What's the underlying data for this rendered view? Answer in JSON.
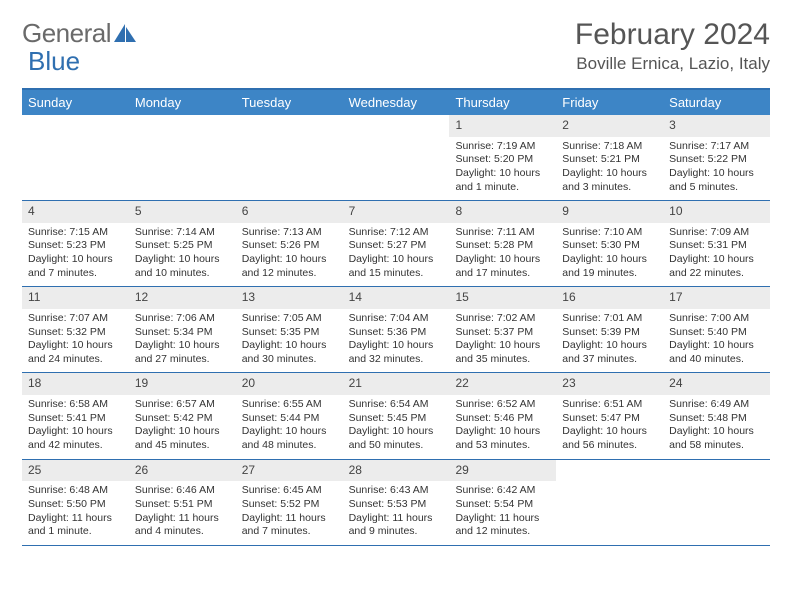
{
  "logo": {
    "text1": "General",
    "text2": "Blue"
  },
  "header": {
    "month_year": "February 2024",
    "location": "Boville Ernica, Lazio, Italy"
  },
  "colors": {
    "header_bar": "#3d85c6",
    "rule": "#2f6fb0",
    "daynum_bg": "#ececec",
    "text": "#333333",
    "logo_gray": "#6a6a6a",
    "logo_blue": "#2f6fb0"
  },
  "day_names": [
    "Sunday",
    "Monday",
    "Tuesday",
    "Wednesday",
    "Thursday",
    "Friday",
    "Saturday"
  ],
  "weeks": [
    [
      {
        "empty": true
      },
      {
        "empty": true
      },
      {
        "empty": true
      },
      {
        "empty": true
      },
      {
        "n": "1",
        "sunrise": "Sunrise: 7:19 AM",
        "sunset": "Sunset: 5:20 PM",
        "daylight": "Daylight: 10 hours and 1 minute."
      },
      {
        "n": "2",
        "sunrise": "Sunrise: 7:18 AM",
        "sunset": "Sunset: 5:21 PM",
        "daylight": "Daylight: 10 hours and 3 minutes."
      },
      {
        "n": "3",
        "sunrise": "Sunrise: 7:17 AM",
        "sunset": "Sunset: 5:22 PM",
        "daylight": "Daylight: 10 hours and 5 minutes."
      }
    ],
    [
      {
        "n": "4",
        "sunrise": "Sunrise: 7:15 AM",
        "sunset": "Sunset: 5:23 PM",
        "daylight": "Daylight: 10 hours and 7 minutes."
      },
      {
        "n": "5",
        "sunrise": "Sunrise: 7:14 AM",
        "sunset": "Sunset: 5:25 PM",
        "daylight": "Daylight: 10 hours and 10 minutes."
      },
      {
        "n": "6",
        "sunrise": "Sunrise: 7:13 AM",
        "sunset": "Sunset: 5:26 PM",
        "daylight": "Daylight: 10 hours and 12 minutes."
      },
      {
        "n": "7",
        "sunrise": "Sunrise: 7:12 AM",
        "sunset": "Sunset: 5:27 PM",
        "daylight": "Daylight: 10 hours and 15 minutes."
      },
      {
        "n": "8",
        "sunrise": "Sunrise: 7:11 AM",
        "sunset": "Sunset: 5:28 PM",
        "daylight": "Daylight: 10 hours and 17 minutes."
      },
      {
        "n": "9",
        "sunrise": "Sunrise: 7:10 AM",
        "sunset": "Sunset: 5:30 PM",
        "daylight": "Daylight: 10 hours and 19 minutes."
      },
      {
        "n": "10",
        "sunrise": "Sunrise: 7:09 AM",
        "sunset": "Sunset: 5:31 PM",
        "daylight": "Daylight: 10 hours and 22 minutes."
      }
    ],
    [
      {
        "n": "11",
        "sunrise": "Sunrise: 7:07 AM",
        "sunset": "Sunset: 5:32 PM",
        "daylight": "Daylight: 10 hours and 24 minutes."
      },
      {
        "n": "12",
        "sunrise": "Sunrise: 7:06 AM",
        "sunset": "Sunset: 5:34 PM",
        "daylight": "Daylight: 10 hours and 27 minutes."
      },
      {
        "n": "13",
        "sunrise": "Sunrise: 7:05 AM",
        "sunset": "Sunset: 5:35 PM",
        "daylight": "Daylight: 10 hours and 30 minutes."
      },
      {
        "n": "14",
        "sunrise": "Sunrise: 7:04 AM",
        "sunset": "Sunset: 5:36 PM",
        "daylight": "Daylight: 10 hours and 32 minutes."
      },
      {
        "n": "15",
        "sunrise": "Sunrise: 7:02 AM",
        "sunset": "Sunset: 5:37 PM",
        "daylight": "Daylight: 10 hours and 35 minutes."
      },
      {
        "n": "16",
        "sunrise": "Sunrise: 7:01 AM",
        "sunset": "Sunset: 5:39 PM",
        "daylight": "Daylight: 10 hours and 37 minutes."
      },
      {
        "n": "17",
        "sunrise": "Sunrise: 7:00 AM",
        "sunset": "Sunset: 5:40 PM",
        "daylight": "Daylight: 10 hours and 40 minutes."
      }
    ],
    [
      {
        "n": "18",
        "sunrise": "Sunrise: 6:58 AM",
        "sunset": "Sunset: 5:41 PM",
        "daylight": "Daylight: 10 hours and 42 minutes."
      },
      {
        "n": "19",
        "sunrise": "Sunrise: 6:57 AM",
        "sunset": "Sunset: 5:42 PM",
        "daylight": "Daylight: 10 hours and 45 minutes."
      },
      {
        "n": "20",
        "sunrise": "Sunrise: 6:55 AM",
        "sunset": "Sunset: 5:44 PM",
        "daylight": "Daylight: 10 hours and 48 minutes."
      },
      {
        "n": "21",
        "sunrise": "Sunrise: 6:54 AM",
        "sunset": "Sunset: 5:45 PM",
        "daylight": "Daylight: 10 hours and 50 minutes."
      },
      {
        "n": "22",
        "sunrise": "Sunrise: 6:52 AM",
        "sunset": "Sunset: 5:46 PM",
        "daylight": "Daylight: 10 hours and 53 minutes."
      },
      {
        "n": "23",
        "sunrise": "Sunrise: 6:51 AM",
        "sunset": "Sunset: 5:47 PM",
        "daylight": "Daylight: 10 hours and 56 minutes."
      },
      {
        "n": "24",
        "sunrise": "Sunrise: 6:49 AM",
        "sunset": "Sunset: 5:48 PM",
        "daylight": "Daylight: 10 hours and 58 minutes."
      }
    ],
    [
      {
        "n": "25",
        "sunrise": "Sunrise: 6:48 AM",
        "sunset": "Sunset: 5:50 PM",
        "daylight": "Daylight: 11 hours and 1 minute."
      },
      {
        "n": "26",
        "sunrise": "Sunrise: 6:46 AM",
        "sunset": "Sunset: 5:51 PM",
        "daylight": "Daylight: 11 hours and 4 minutes."
      },
      {
        "n": "27",
        "sunrise": "Sunrise: 6:45 AM",
        "sunset": "Sunset: 5:52 PM",
        "daylight": "Daylight: 11 hours and 7 minutes."
      },
      {
        "n": "28",
        "sunrise": "Sunrise: 6:43 AM",
        "sunset": "Sunset: 5:53 PM",
        "daylight": "Daylight: 11 hours and 9 minutes."
      },
      {
        "n": "29",
        "sunrise": "Sunrise: 6:42 AM",
        "sunset": "Sunset: 5:54 PM",
        "daylight": "Daylight: 11 hours and 12 minutes."
      },
      {
        "empty": true
      },
      {
        "empty": true
      }
    ]
  ]
}
